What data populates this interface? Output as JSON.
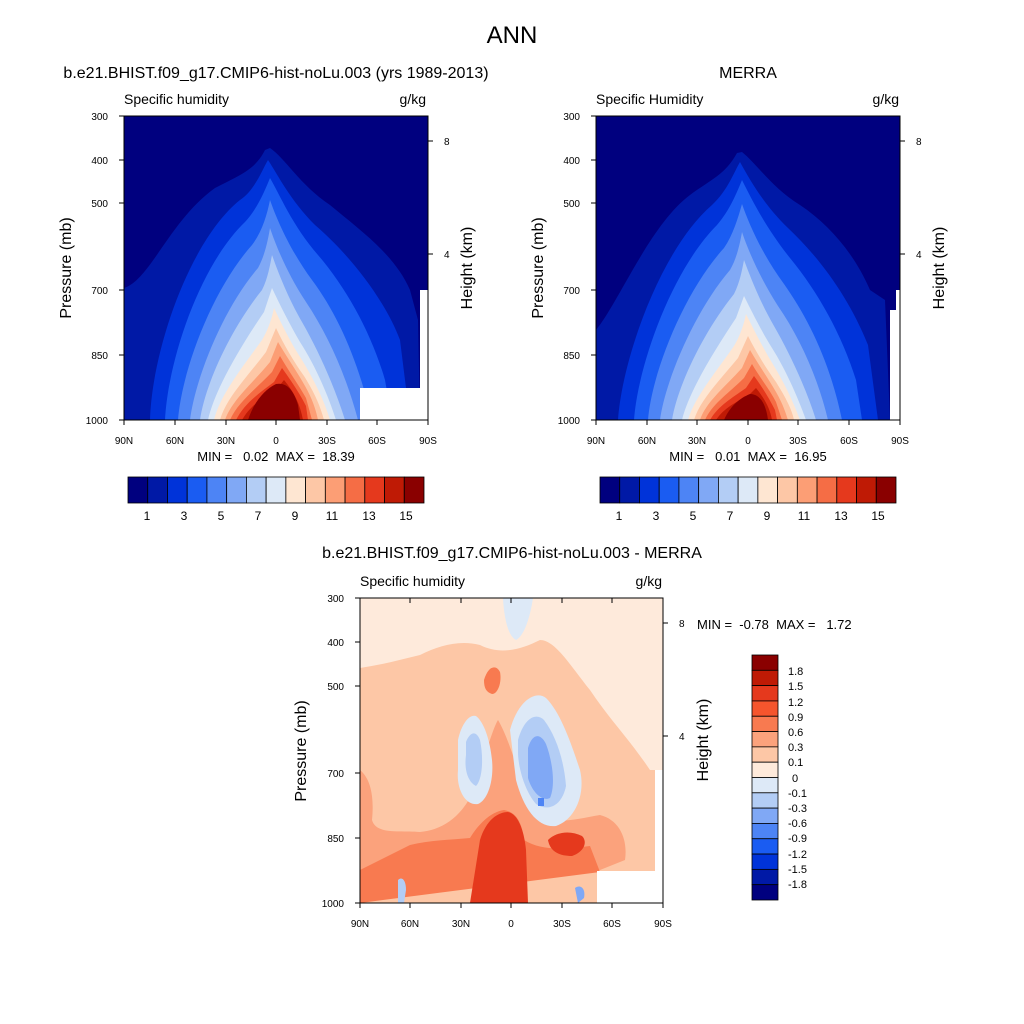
{
  "figure_title": "ANN",
  "chart_data": [
    {
      "id": "model",
      "type": "contour",
      "title": "b.e21.BHIST.f09_g17.CMIP6-hist-noLu.003 (yrs 1989-2013)",
      "left_label": "Specific humidity",
      "right_label": "g/kg",
      "ylabel": "Pressure (mb)",
      "ylabel_right": "Height (km)",
      "xticks": [
        "90N",
        "60N",
        "30N",
        "0",
        "30S",
        "60S",
        "90S"
      ],
      "yticks": [
        "300",
        "400",
        "500",
        "700",
        "850",
        "1000"
      ],
      "height_ticks": [
        "8",
        "4"
      ],
      "stats_label": "MIN =   0.02  MAX =  18.39",
      "min": 0.02,
      "max": 18.39,
      "colorbar_labels": [
        "1",
        "3",
        "5",
        "7",
        "9",
        "11",
        "13",
        "15"
      ],
      "colorbar_colors": [
        "#00007f",
        "#0019a6",
        "#0033d9",
        "#1a5cf2",
        "#4d84f5",
        "#80a8f5",
        "#b3cdf5",
        "#dde9f7",
        "#fee6d2",
        "#fdc7a6",
        "#fc9e75",
        "#f56d45",
        "#e5391d",
        "#bf1a05",
        "#8a0000"
      ]
    },
    {
      "id": "merra",
      "type": "contour",
      "title": "MERRA",
      "left_label": "Specific Humidity",
      "right_label": "g/kg",
      "ylabel": "Pressure (mb)",
      "ylabel_right": "Height (km)",
      "xticks": [
        "90N",
        "60N",
        "30N",
        "0",
        "30S",
        "60S",
        "90S"
      ],
      "yticks": [
        "300",
        "400",
        "500",
        "700",
        "850",
        "1000"
      ],
      "height_ticks": [
        "8",
        "4"
      ],
      "stats_label": "MIN =   0.01  MAX =  16.95",
      "min": 0.01,
      "max": 16.95,
      "colorbar_labels": [
        "1",
        "3",
        "5",
        "7",
        "9",
        "11",
        "13",
        "15"
      ],
      "colorbar_colors": [
        "#00007f",
        "#0019a6",
        "#0033d9",
        "#1a5cf2",
        "#4d84f5",
        "#80a8f5",
        "#b3cdf5",
        "#dde9f7",
        "#fee6d2",
        "#fdc7a6",
        "#fc9e75",
        "#f56d45",
        "#e5391d",
        "#bf1a05",
        "#8a0000"
      ]
    },
    {
      "id": "diff",
      "type": "contour",
      "title": "b.e21.BHIST.f09_g17.CMIP6-hist-noLu.003 - MERRA",
      "left_label": "Specific humidity",
      "right_label": "g/kg",
      "ylabel": "Pressure (mb)",
      "ylabel_right": "Height (km)",
      "xticks": [
        "90N",
        "60N",
        "30N",
        "0",
        "30S",
        "60S",
        "90S"
      ],
      "yticks": [
        "300",
        "400",
        "500",
        "700",
        "850",
        "1000"
      ],
      "height_ticks": [
        "8",
        "4"
      ],
      "stats_label": "MIN =  -0.78  MAX =   1.72",
      "min": -0.78,
      "max": 1.72,
      "colorbar_labels": [
        "1.8",
        "1.5",
        "1.2",
        "0.9",
        "0.6",
        "0.3",
        "0.1",
        "0",
        "-0.1",
        "-0.3",
        "-0.6",
        "-0.9",
        "-1.2",
        "-1.5",
        "-1.8"
      ],
      "colorbar_colors": [
        "#8a0000",
        "#bf1a05",
        "#e5391d",
        "#f5552d",
        "#f87a50",
        "#fba27c",
        "#fdc7a6",
        "#feeadb",
        "#dde9f7",
        "#b3cdf5",
        "#80a8f5",
        "#4d84f5",
        "#1a5cf2",
        "#0033d9",
        "#0019a6",
        "#00007f"
      ]
    }
  ]
}
